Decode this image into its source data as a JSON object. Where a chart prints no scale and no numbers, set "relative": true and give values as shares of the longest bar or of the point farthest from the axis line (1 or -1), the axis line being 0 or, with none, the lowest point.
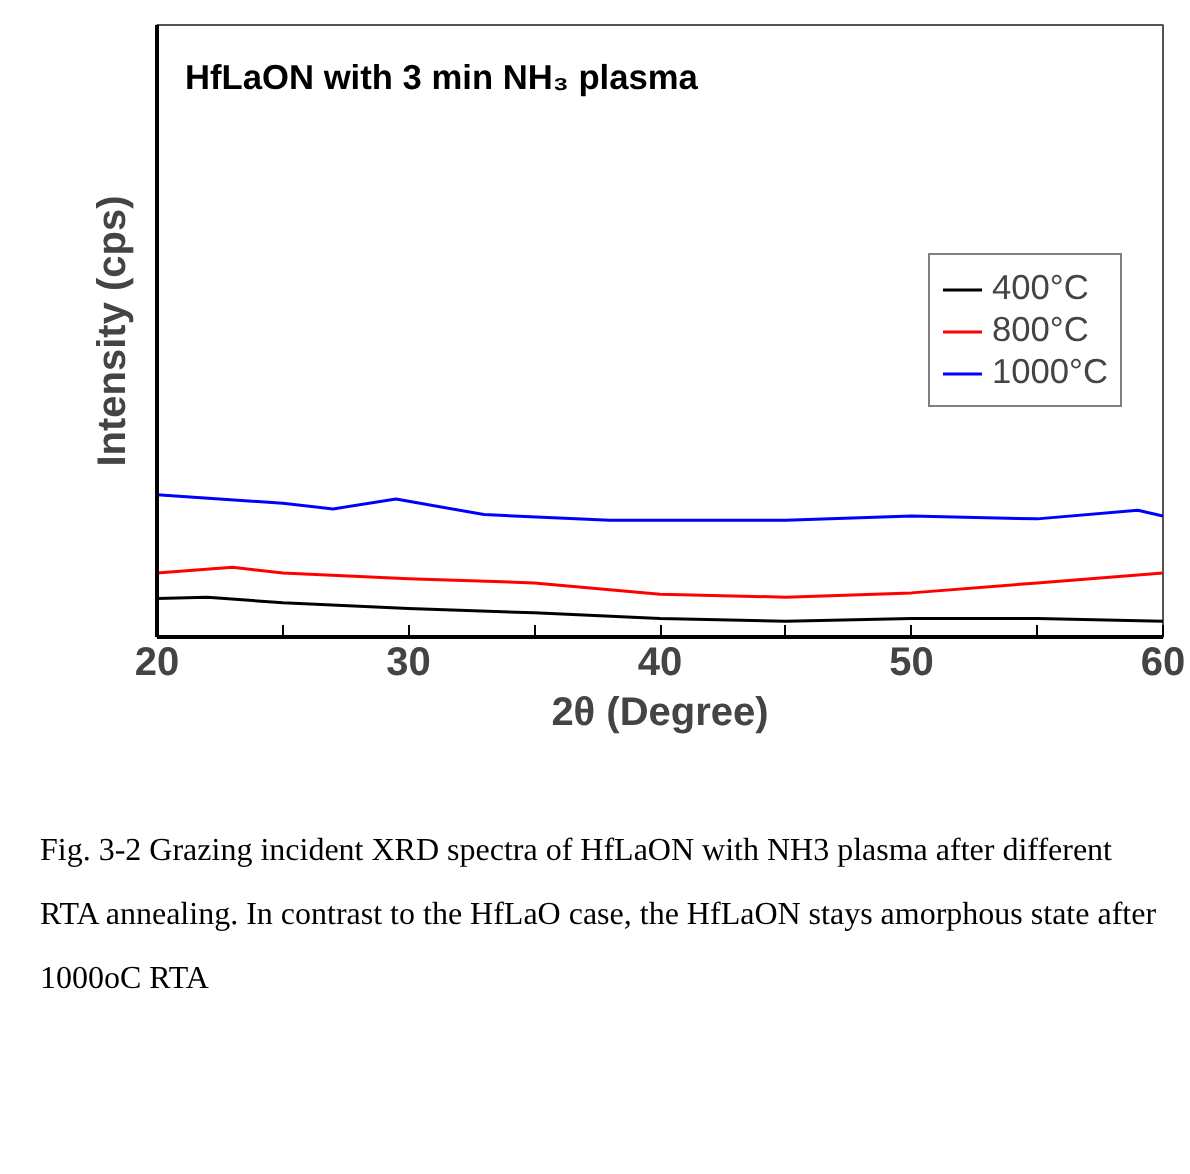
{
  "chart_data": {
    "type": "line",
    "title": "HfLaON with 3 min NH₃ plasma",
    "xlabel": "2θ (Degree)",
    "ylabel": "Intensity (cps)",
    "relative": true,
    "legend": "right",
    "marker": "none",
    "line_style": "solid",
    "grid": false,
    "xlim": [
      20,
      60
    ],
    "xticks": [
      20,
      {
        "value": 25,
        "label": null
      },
      30,
      {
        "value": 35,
        "label": null
      },
      40,
      {
        "value": 45,
        "label": null
      },
      50,
      {
        "value": 55,
        "label": null
      },
      60
    ],
    "series": [
      {
        "name": "400°C",
        "color": "#000000",
        "x": [
          20,
          22,
          25,
          30,
          35,
          40,
          45,
          50,
          55,
          60
        ],
        "values": [
          0.27,
          0.28,
          0.24,
          0.2,
          0.17,
          0.13,
          0.11,
          0.13,
          0.13,
          0.11
        ]
      },
      {
        "name": "800°C",
        "color": "#ff0000",
        "x": [
          20,
          23,
          25,
          30,
          35,
          40,
          45,
          50,
          55,
          60
        ],
        "values": [
          0.45,
          0.49,
          0.45,
          0.41,
          0.38,
          0.3,
          0.28,
          0.31,
          0.38,
          0.45
        ]
      },
      {
        "name": "1000°C",
        "color": "#0000ff",
        "x": [
          20,
          25,
          27,
          29.5,
          33,
          38,
          45,
          50,
          55,
          59,
          60
        ],
        "values": [
          1,
          0.94,
          0.9,
          0.97,
          0.86,
          0.82,
          0.82,
          0.85,
          0.83,
          0.89,
          0.85
        ]
      }
    ],
    "annotations": [
      "Fig. 3-2 Grazing incident XRD spectra of HfLaON with NH3 plasma after different RTA annealing. In contrast to the HfLaO case, the HfLaON stays amorphous state after 1000oC RTA"
    ]
  }
}
